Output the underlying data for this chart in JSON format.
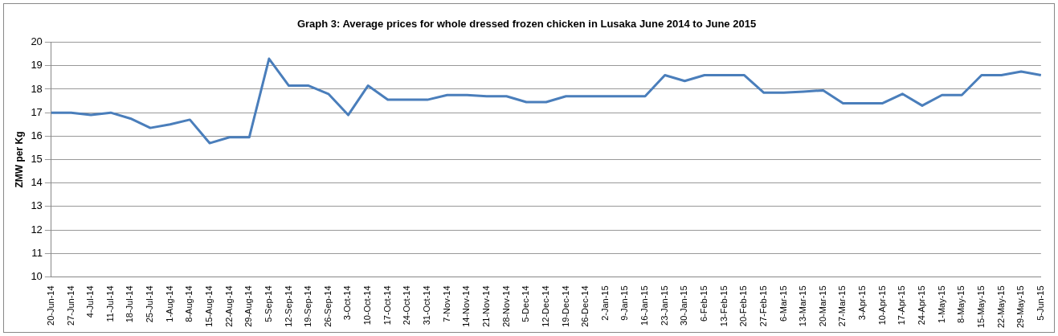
{
  "chart_data": {
    "type": "line",
    "title": "Graph 3: Average prices for whole dressed frozen chicken in Lusaka June 2014 to June 2015",
    "ylabel": "ZMW per Kg",
    "categories": [
      "20-Jun-14",
      "27-Jun-14",
      "4-Jul-14",
      "11-Jul-14",
      "18-Jul-14",
      "25-Jul-14",
      "1-Aug-14",
      "8-Aug-14",
      "15-Aug-14",
      "22-Aug-14",
      "29-Aug-14",
      "5-Sep-14",
      "12-Sep-14",
      "19-Sep-14",
      "26-Sep-14",
      "3-Oct-14",
      "10-Oct-14",
      "17-Oct-14",
      "24-Oct-14",
      "31-Oct-14",
      "7-Nov-14",
      "14-Nov-14",
      "21-Nov-14",
      "28-Nov-14",
      "5-Dec-14",
      "12-Dec-14",
      "19-Dec-14",
      "26-Dec-14",
      "2-Jan-15",
      "9-Jan-15",
      "16-Jan-15",
      "23-Jan-15",
      "30-Jan-15",
      "6-Feb-15",
      "13-Feb-15",
      "20-Feb-15",
      "27-Feb-15",
      "6-Mar-15",
      "13-Mar-15",
      "20-Mar-15",
      "27-Mar-15",
      "3-Apr-15",
      "10-Apr-15",
      "17-Apr-15",
      "24-Apr-15",
      "1-May-15",
      "8-May-15",
      "15-May-15",
      "22-May-15",
      "29-May-15",
      "5-Jun-15"
    ],
    "series": [
      {
        "color": "#4a7ebb",
        "values": [
          17,
          17,
          16.9,
          17,
          16.75,
          16.35,
          16.5,
          16.7,
          15.7,
          15.95,
          15.95,
          19.3,
          18.15,
          18.15,
          17.8,
          16.9,
          18.15,
          17.55,
          17.55,
          17.55,
          17.75,
          17.75,
          17.7,
          17.7,
          17.45,
          17.45,
          17.7,
          17.7,
          17.7,
          17.7,
          17.7,
          18.6,
          18.35,
          18.6,
          18.6,
          18.6,
          17.85,
          17.85,
          17.9,
          17.95,
          17.4,
          17.4,
          17.4,
          17.8,
          17.3,
          17.75,
          17.75,
          18.6,
          18.6,
          18.75,
          18.6
        ]
      }
    ],
    "ylim": [
      10,
      20
    ],
    "yticks": [
      10,
      11,
      12,
      13,
      14,
      15,
      16,
      17,
      18,
      19,
      20
    ],
    "grid": "y",
    "legend": false,
    "marker": "none",
    "line_style": "solid"
  }
}
